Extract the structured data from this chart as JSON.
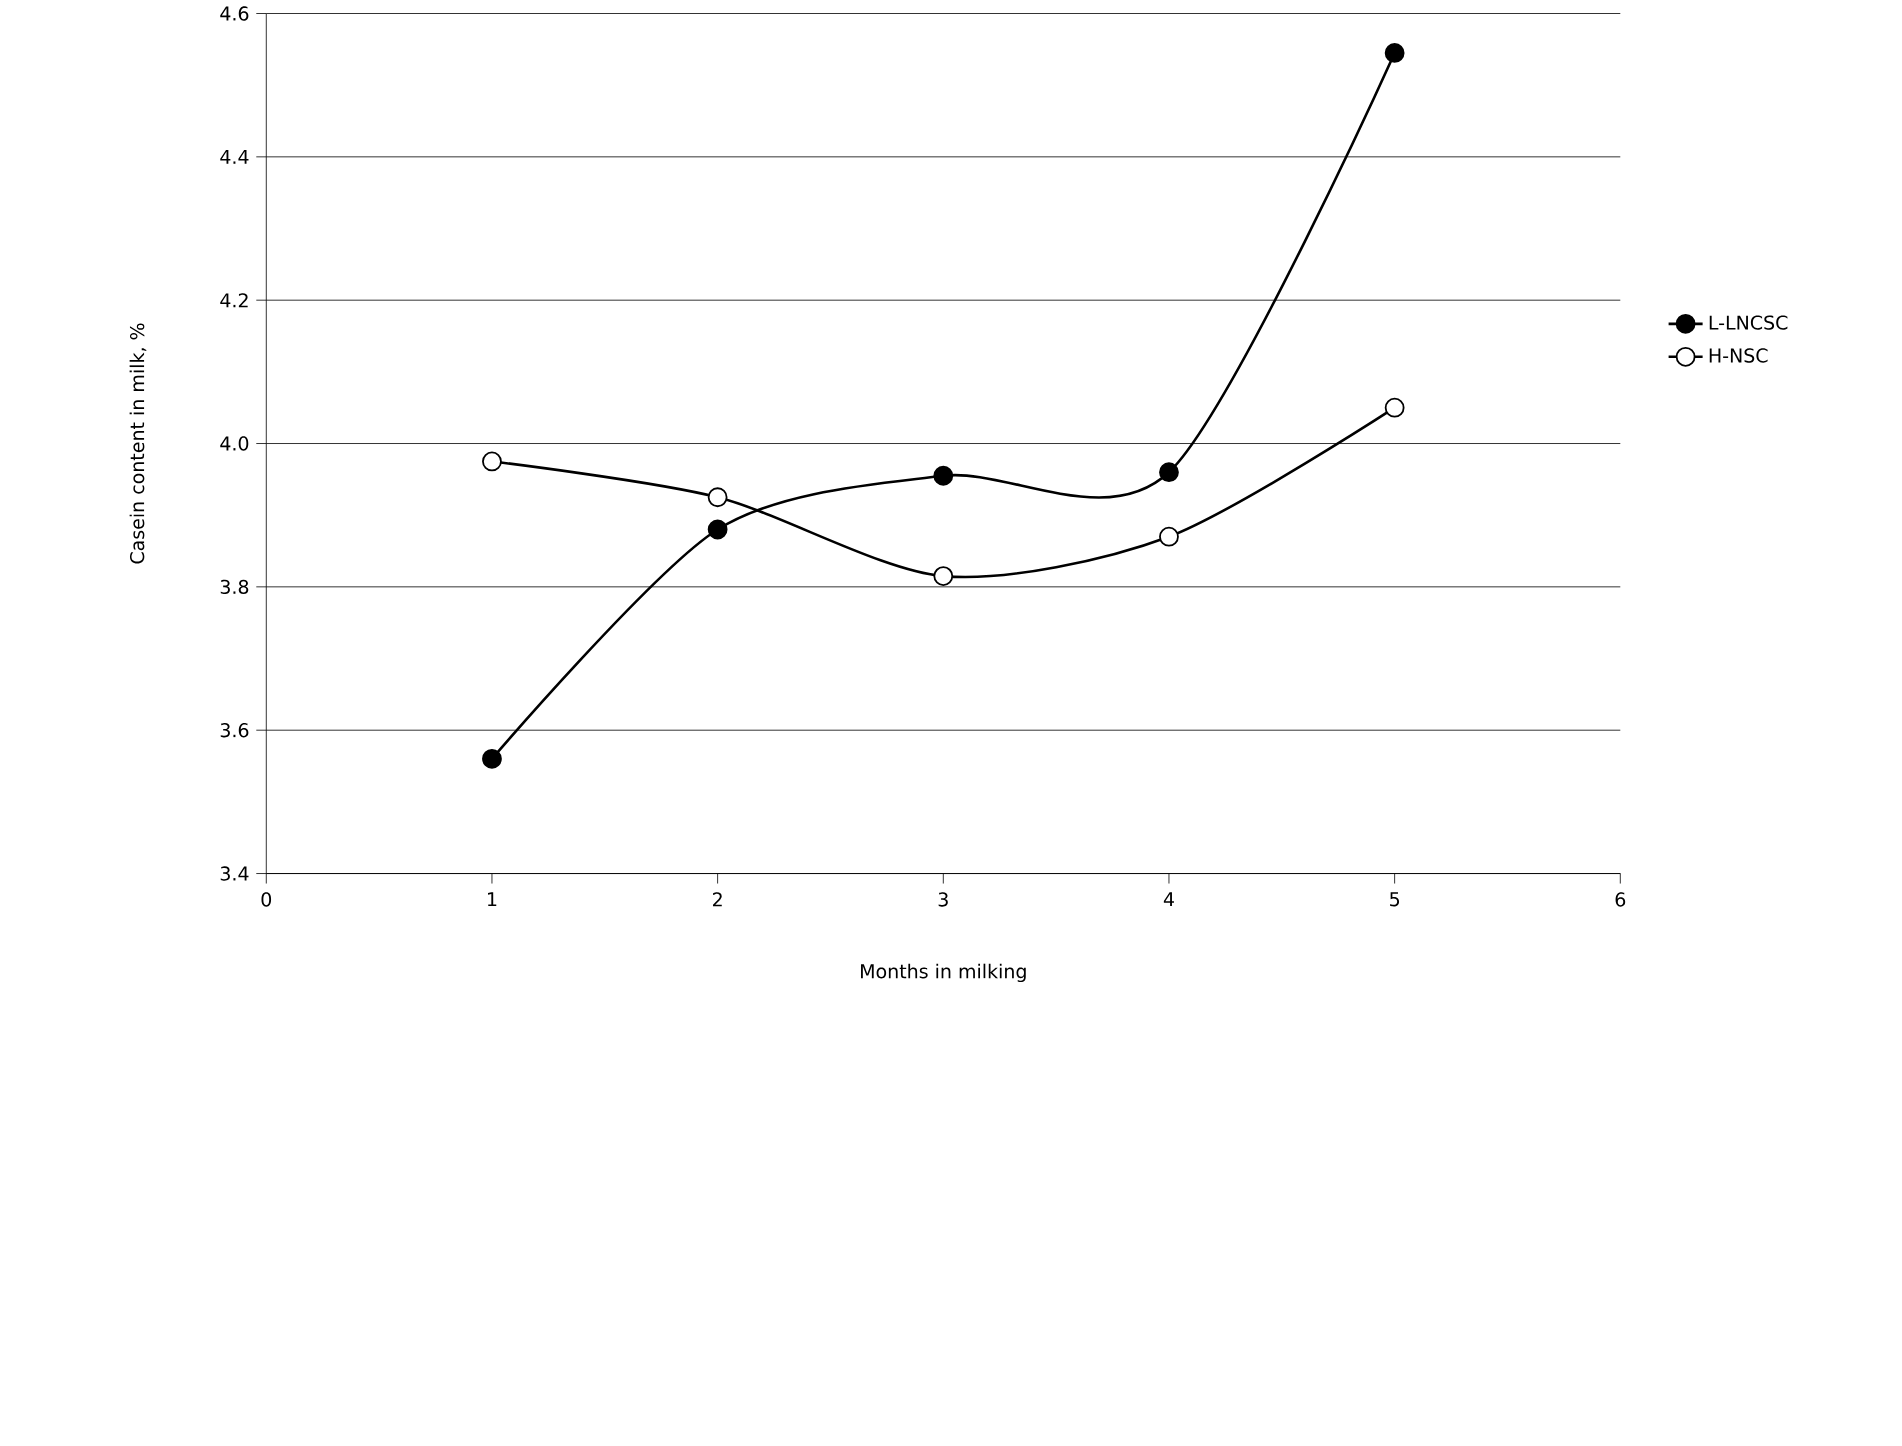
{
  "chart_data": {
    "type": "line",
    "xlabel": "Months in milking",
    "ylabel": "Casein content in milk, %",
    "x": [
      1,
      2,
      3,
      4,
      5
    ],
    "series": [
      {
        "name": "L-LNCSC",
        "color": "#000000",
        "values": [
          3.56,
          3.88,
          3.955,
          3.96,
          4.545
        ]
      },
      {
        "name": "H-NSC",
        "color": "#000000",
        "values": [
          3.975,
          3.925,
          3.815,
          3.87,
          4.05
        ]
      }
    ],
    "xlim": [
      0,
      6
    ],
    "xticks": [
      0,
      1,
      2,
      3,
      4,
      5,
      6
    ],
    "ylim": [
      3.4,
      4.6
    ],
    "yticks": [
      3.4,
      3.6,
      3.8,
      4.2,
      {
        "value": 4.0,
        "label": "4.0"
      },
      4.4,
      4.6
    ],
    "grid": "y",
    "legend": "right",
    "marker": "circle",
    "line_style": "solid"
  }
}
